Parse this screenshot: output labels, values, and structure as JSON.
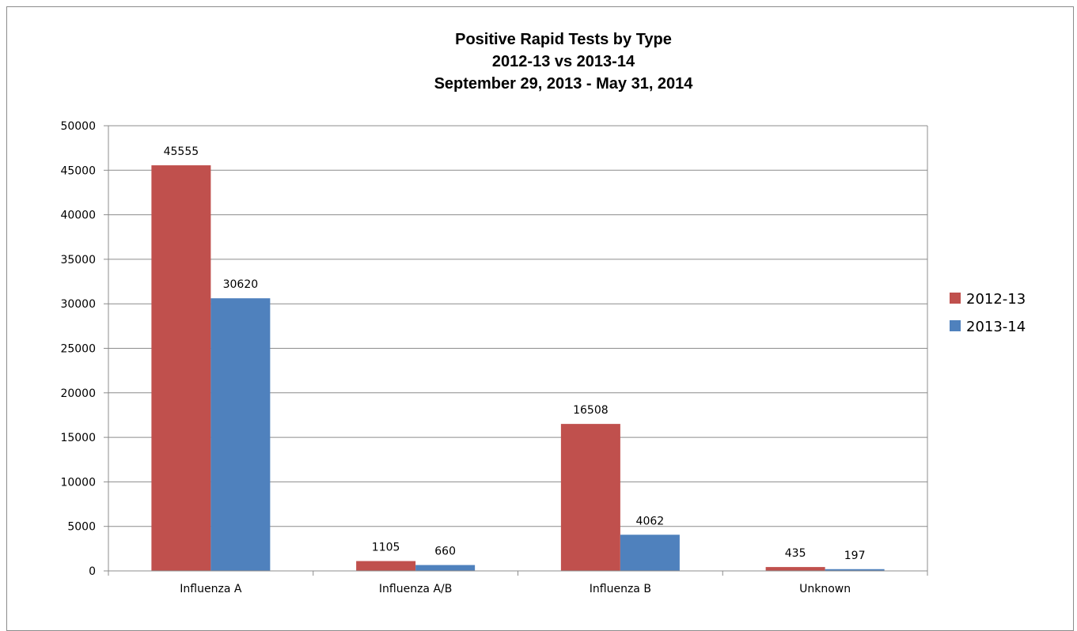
{
  "chart_data": {
    "type": "bar",
    "title": [
      "Positive Rapid Tests by Type",
      "2012-13 vs 2013-14",
      "September 29, 2013 - May 31, 2014"
    ],
    "xlabel": "",
    "ylabel": "",
    "categories": [
      "Influenza A",
      "Influenza A/B",
      "Influenza B",
      "Unknown"
    ],
    "series": [
      {
        "name": "2012-13",
        "color": "#c0504d",
        "values": [
          45555,
          1105,
          16508,
          435
        ]
      },
      {
        "name": "2013-14",
        "color": "#4f81bd",
        "values": [
          30620,
          660,
          4062,
          197
        ]
      }
    ],
    "ylim": [
      0,
      50000
    ],
    "yticks": [
      0,
      5000,
      10000,
      15000,
      20000,
      25000,
      30000,
      35000,
      40000,
      45000,
      50000
    ],
    "grid": true,
    "legend": "right",
    "data_labels": true
  }
}
